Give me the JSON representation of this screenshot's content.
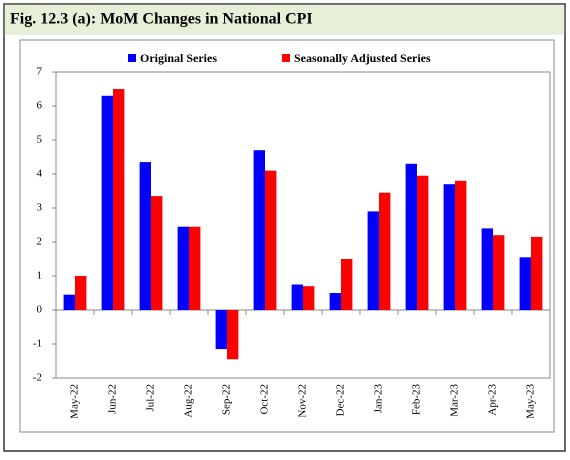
{
  "chart_data": {
    "type": "bar",
    "title": "Fig. 12.3 (a): MoM Changes in National CPI",
    "categories": [
      "May-22",
      "Jun-22",
      "Jul-22",
      "Aug-22",
      "Sep-22",
      "Oct-22",
      "Nov-22",
      "Dec-22",
      "Jan-23",
      "Feb-23",
      "Mar-23",
      "Apr-23",
      "May-23"
    ],
    "series": [
      {
        "name": "Original Series",
        "color": "#0000ff",
        "values": [
          0.45,
          6.3,
          4.35,
          2.45,
          -1.15,
          4.7,
          0.75,
          0.5,
          2.9,
          4.3,
          3.7,
          2.4,
          1.55
        ]
      },
      {
        "name": "Seasonally Adjusted Series",
        "color": "#ff0000",
        "values": [
          1.0,
          6.5,
          3.35,
          2.45,
          -1.45,
          4.1,
          0.7,
          1.5,
          3.45,
          3.95,
          3.8,
          2.2,
          2.15
        ]
      }
    ],
    "ylim": [
      -2,
      7
    ],
    "yticks": [
      -2,
      -1,
      0,
      1,
      2,
      3,
      4,
      5,
      6,
      7
    ],
    "legend": "top"
  }
}
